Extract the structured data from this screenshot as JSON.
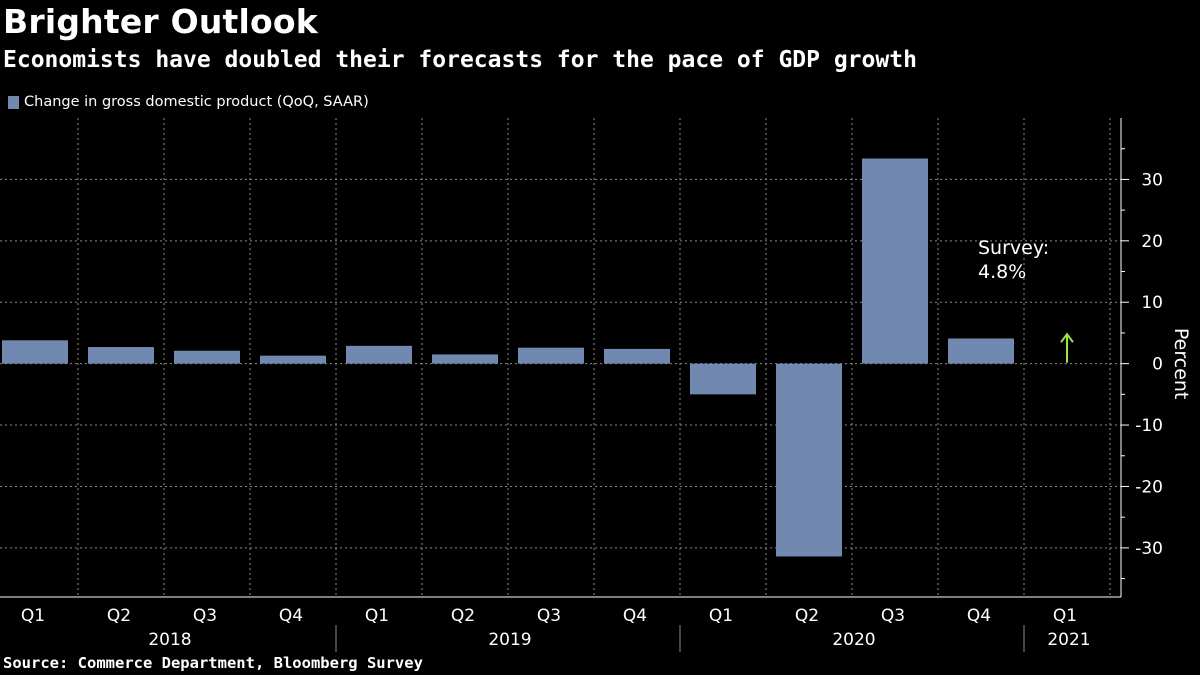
{
  "header": {
    "title": "Brighter Outlook",
    "subtitle": "Economists have doubled their forecasts for the pace of GDP growth"
  },
  "footer": {
    "source": "Source: Commerce Department, Bloomberg Survey"
  },
  "colors": {
    "background": "#000000",
    "bar": "#7189b0",
    "arrow": "#9fe34a",
    "grid": "#8c8c8c",
    "text": "#ffffff"
  },
  "chart_data": {
    "type": "bar",
    "title": "Brighter Outlook",
    "subtitle": "Economists have doubled their forecasts for the pace of GDP growth",
    "legend": [
      "Change in gross domestic product (QoQ, SAAR)"
    ],
    "legend_position": "top-left",
    "series": [
      {
        "name": "Change in gross domestic product (QoQ, SAAR)",
        "values": [
          3.8,
          2.7,
          2.1,
          1.3,
          2.9,
          1.5,
          2.6,
          2.4,
          -5.0,
          -31.4,
          33.4,
          4.1,
          null
        ]
      }
    ],
    "categories": [
      "Q1",
      "Q2",
      "Q3",
      "Q4",
      "Q1",
      "Q2",
      "Q3",
      "Q4",
      "Q1",
      "Q2",
      "Q3",
      "Q4",
      "Q1"
    ],
    "year_groups": [
      {
        "label": "2018",
        "start": 0,
        "end": 3
      },
      {
        "label": "2019",
        "start": 4,
        "end": 7
      },
      {
        "label": "2020",
        "start": 8,
        "end": 11
      },
      {
        "label": "2021",
        "start": 12,
        "end": 12
      }
    ],
    "ylim": [
      -38,
      40
    ],
    "yticks": [
      -30,
      -20,
      -10,
      0,
      10,
      20,
      30
    ],
    "ytick_labels": [
      "-30",
      "-20",
      "-10",
      "0",
      "10",
      "20",
      "30"
    ],
    "ylabel": "Percent",
    "yaxis_position": "right",
    "xlabel": "",
    "grid": true,
    "annotations": [
      {
        "line1": "Survey:",
        "line2": "4.8%",
        "category_index": 12,
        "y": 4.8,
        "arrow": "up"
      }
    ]
  }
}
